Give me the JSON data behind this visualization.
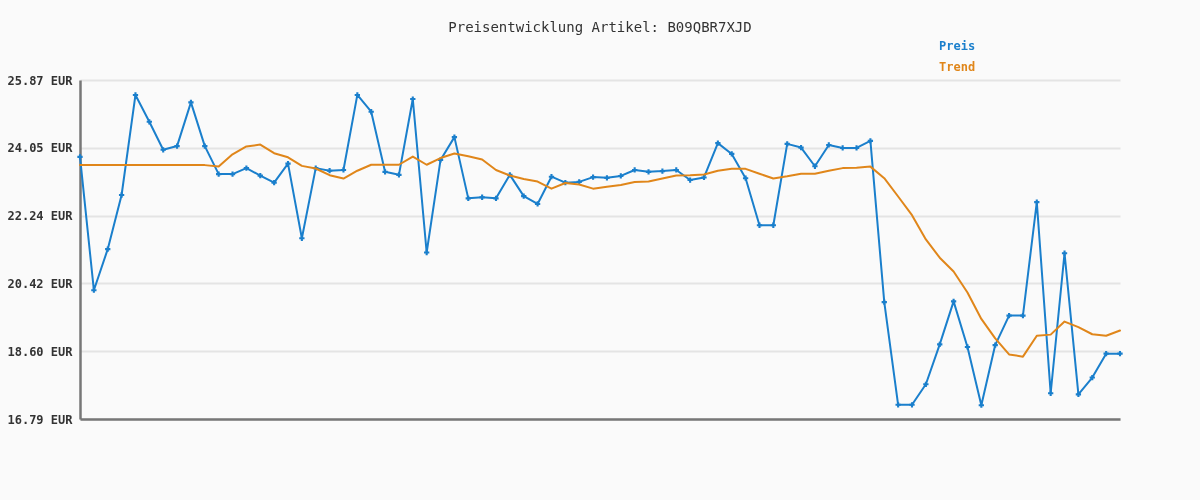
{
  "chart_data": {
    "type": "line",
    "title": "Preisentwicklung Artikel: B09QBR7XJD",
    "categories": [
      null,
      null,
      null,
      null,
      null,
      null,
      null,
      null,
      null,
      null,
      null,
      null,
      null,
      null,
      null,
      null,
      null,
      null,
      null,
      null,
      null,
      null,
      null,
      null,
      null,
      null,
      null,
      null,
      null,
      null,
      null,
      null,
      null,
      null,
      null,
      null,
      null,
      null,
      null,
      null,
      null,
      null,
      null,
      null,
      null,
      null,
      null,
      null,
      null,
      null,
      null,
      null,
      null,
      null,
      null,
      null,
      null,
      null,
      null,
      null,
      null,
      null,
      null,
      null,
      null,
      null,
      null,
      null,
      null,
      null,
      null,
      null,
      null,
      null,
      null,
      null
    ],
    "series": [
      {
        "name": "Preis",
        "color": "#1a7fcc",
        "marker": "cross",
        "values": [
          23.81,
          20.24,
          21.34,
          22.79,
          25.47,
          24.75,
          24.0,
          24.1,
          25.27,
          24.1,
          23.35,
          23.35,
          23.51,
          23.31,
          23.12,
          23.63,
          21.63,
          23.51,
          23.44,
          23.46,
          25.47,
          25.02,
          23.41,
          23.33,
          25.36,
          21.25,
          23.73,
          24.34,
          22.7,
          22.73,
          22.7,
          23.33,
          22.76,
          22.55,
          23.28,
          23.12,
          23.14,
          23.27,
          23.25,
          23.3,
          23.46,
          23.41,
          23.43,
          23.46,
          23.19,
          23.26,
          24.18,
          23.89,
          23.24,
          21.98,
          21.98,
          24.16,
          24.06,
          23.56,
          24.13,
          24.05,
          24.05,
          24.24,
          19.92,
          17.17,
          17.17,
          17.72,
          18.79,
          19.94,
          18.72,
          17.16,
          18.77,
          19.56,
          19.56,
          22.6,
          17.48,
          21.23,
          17.45,
          17.9,
          18.54,
          18.54
        ]
      },
      {
        "name": "Trend",
        "color": "#e0861a",
        "marker": "none",
        "values": [
          23.59,
          23.59,
          23.59,
          23.59,
          23.59,
          23.59,
          23.59,
          23.59,
          23.59,
          23.59,
          23.55,
          23.88,
          24.09,
          24.14,
          23.91,
          23.8,
          23.57,
          23.5,
          23.32,
          23.23,
          23.44,
          23.6,
          23.6,
          23.6,
          23.82,
          23.6,
          23.78,
          23.9,
          23.83,
          23.74,
          23.46,
          23.31,
          23.22,
          23.15,
          22.96,
          23.11,
          23.07,
          22.96,
          23.01,
          23.06,
          23.14,
          23.15,
          23.23,
          23.31,
          23.32,
          23.34,
          23.44,
          23.49,
          23.49,
          23.36,
          23.23,
          23.29,
          23.36,
          23.36,
          23.44,
          23.51,
          23.52,
          23.55,
          23.24,
          22.75,
          22.25,
          21.6,
          21.11,
          20.74,
          20.18,
          19.47,
          18.95,
          18.52,
          18.46,
          19.02,
          19.05,
          19.4,
          19.25,
          19.06,
          19.02,
          19.16
        ]
      }
    ],
    "ylim": [
      16.79,
      25.87
    ],
    "yticks": [
      {
        "value": 16.79,
        "label": "16.79 EUR"
      },
      {
        "value": 18.6,
        "label": "18.60 EUR"
      },
      {
        "value": 20.42,
        "label": "20.42 EUR"
      },
      {
        "value": 22.24,
        "label": "22.24 EUR"
      },
      {
        "value": 24.05,
        "label": "24.05 EUR"
      },
      {
        "value": 25.87,
        "label": "25.87 EUR"
      }
    ],
    "grid": "y",
    "legend": "top right",
    "tick_labels": "y",
    "line_style": "solid"
  }
}
